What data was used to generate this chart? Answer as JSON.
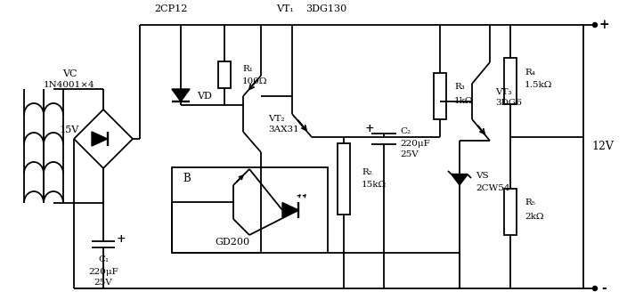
{
  "bg_color": "#ffffff",
  "line_color": "#000000",
  "labels": {
    "VC": "VC",
    "VC_model": "1N4001×4",
    "voltage_15V": "15V",
    "C1": "C₁",
    "C1_val": "220μF",
    "C1_v": "25V",
    "C1_plus": "+",
    "label_2CP12": "2CP12",
    "VD": "VD",
    "R1": "R₁",
    "R1_val": "100Ω",
    "VT2": "VT₂",
    "VT2_model": "3AX31",
    "B": "B",
    "GD200": "GD200",
    "VT1": "VT₁",
    "VT1_model": "3DG130",
    "R2": "R₂",
    "R2_val": "15kΩ",
    "C2": "C₂",
    "C2_val": "220μF",
    "C2_v": "25V",
    "C2_plus": "+",
    "R3": "R₃",
    "R3_val": "1kΩ",
    "R4": "R₄",
    "R4_val": "1.5kΩ",
    "VT3": "VT₃",
    "VT3_model": "3DG6",
    "VS": "VS",
    "VS_model": "2CW54",
    "R5": "R₅",
    "R5_val": "2kΩ",
    "output_plus": "+",
    "output_minus": "-",
    "output_voltage": "12V"
  }
}
